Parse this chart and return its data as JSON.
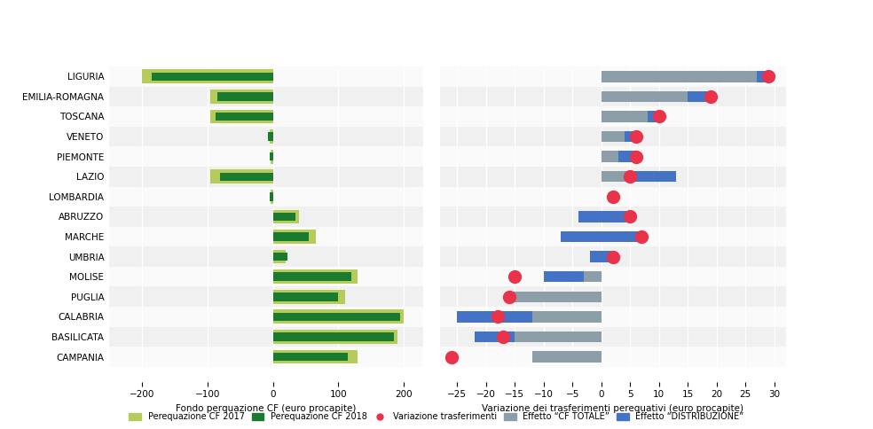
{
  "regions": [
    "LIGURIA",
    "EMILIA-ROMAGNA",
    "TOSCANA",
    "VENETO",
    "PIEMONTE",
    "LAZIO",
    "LOMBARDIA",
    "ABRUZZO",
    "MARCHE",
    "UMBRIA",
    "MOLISE",
    "PUGLIA",
    "CALABRIA",
    "BASILICATA",
    "CAMPANIA"
  ],
  "cf2017": [
    -200,
    -95,
    -95,
    -5,
    -3,
    -95,
    -3,
    40,
    65,
    20,
    130,
    110,
    200,
    190,
    130
  ],
  "cf2018": [
    -185,
    -85,
    -88,
    -8,
    -5,
    -80,
    -5,
    35,
    55,
    22,
    120,
    100,
    195,
    185,
    115
  ],
  "var_trasf": [
    29,
    19,
    10,
    6,
    6,
    5,
    2,
    5,
    7,
    2,
    -15,
    -16,
    -18,
    -17,
    -26
  ],
  "cf_totale": [
    27,
    15,
    8,
    4,
    3,
    13,
    0,
    -4,
    -7,
    -2,
    -10,
    -16,
    -25,
    -22,
    -12
  ],
  "distribuzione": [
    2,
    4,
    2,
    2,
    3,
    -8,
    0,
    9,
    14,
    4,
    7,
    0,
    13,
    7,
    0
  ],
  "color_2017": "#b5cc5a",
  "color_2018": "#1a7a2e",
  "color_var": "#e8334a",
  "color_cf_totale": "#8c9ea8",
  "color_distribuzione": "#4472c4",
  "left_xlim": [
    -250,
    230
  ],
  "right_xlim": [
    -28,
    32
  ],
  "left_xticks": [
    -200,
    -100,
    0,
    100,
    200
  ],
  "right_xticks": [
    -25,
    -20,
    -15,
    -10,
    -5,
    0,
    5,
    10,
    15,
    20,
    25,
    30
  ],
  "left_xlabel": "Fondo perquazione CF (euro procapite)",
  "right_xlabel": "Variazione dei trasferimenti perequativi (euro procapite)",
  "legend_left": [
    "Perequazione CF 2017",
    "Perequazione CF 2018"
  ],
  "legend_right": [
    "Variazione trasferimenti",
    "Effetto “CF TOTALE”",
    "Effetto “DISTRIBUZIONE”"
  ],
  "bg_odd": "#f0f0f0",
  "bg_even": "#fafafa",
  "bar_height": 0.35,
  "dot_size": 100,
  "right_bar_height": 0.55
}
